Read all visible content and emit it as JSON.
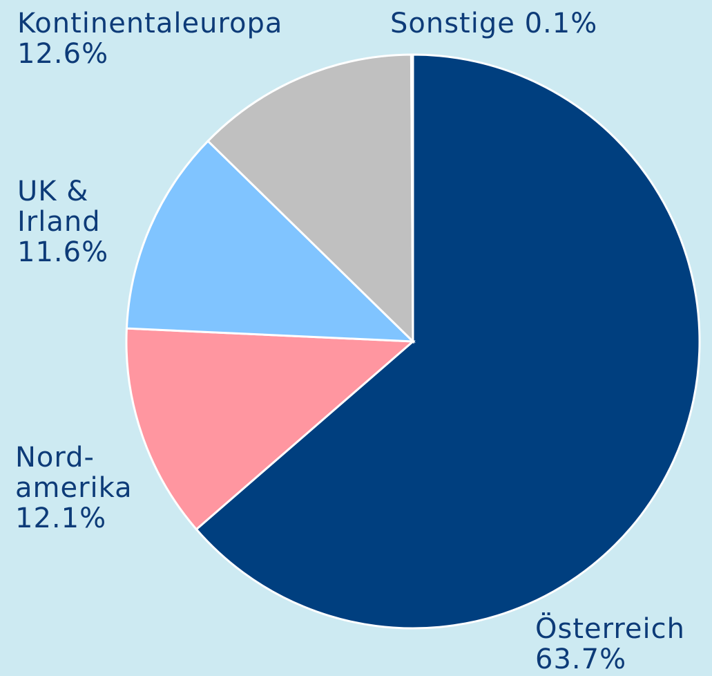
{
  "chart_data": {
    "type": "pie",
    "categories": [
      "Österreich",
      "Nord-\namerika",
      "UK &\nIrland",
      "Kontinentaleuropa",
      "Sonstige"
    ],
    "values": [
      63.7,
      12.1,
      11.6,
      12.6,
      0.1
    ],
    "value_labels": [
      "63.7%",
      "12.1%",
      "11.6%",
      "12.6%",
      "0.1%"
    ],
    "colors": [
      "#003f7f",
      "#ff96a0",
      "#80c4ff",
      "#c0c0c0",
      "#ff69b4"
    ]
  }
}
